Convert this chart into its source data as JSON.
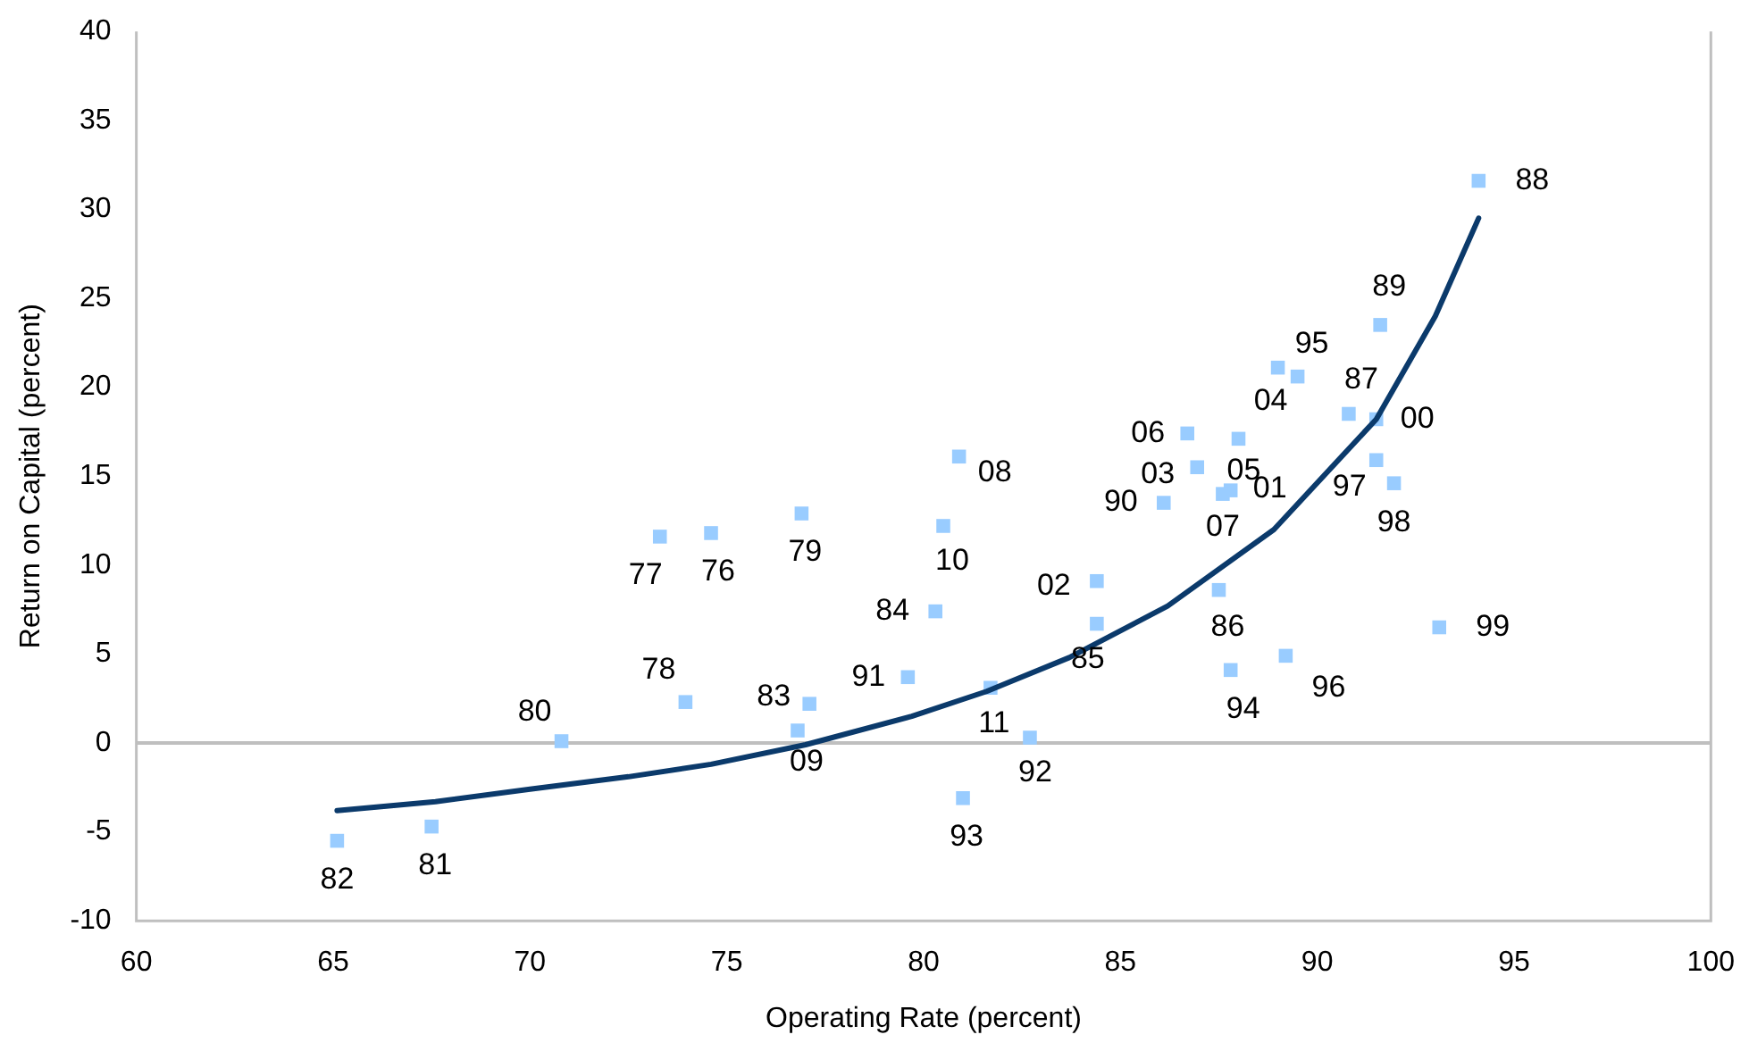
{
  "chart_data": {
    "type": "scatter",
    "xlabel": "Operating Rate (percent)",
    "ylabel": "Return on Capital (percent)",
    "xlim": [
      60,
      100
    ],
    "xticks": [
      60,
      65,
      70,
      75,
      80,
      85,
      90,
      95,
      100
    ],
    "ylim": [
      -10,
      40
    ],
    "yticks": [
      -10,
      -5,
      0,
      5,
      10,
      15,
      20,
      25,
      30,
      35,
      40
    ],
    "grid": false,
    "legend": false,
    "marker": "square",
    "ref_lines": [
      {
        "axis": "y",
        "value": 0,
        "color": "#bfbfbf"
      }
    ],
    "series": [
      {
        "color": "#99ccff",
        "x": [
          74.6,
          73.3,
          73.95,
          76.9,
          70.8,
          67.5,
          65.1,
          77.1,
          80.3,
          84.4,
          87.5,
          90.8,
          94.1,
          91.6,
          86.1,
          79.6,
          82.7,
          81.0,
          87.8,
          89.5,
          89.2,
          91.5,
          91.95,
          93.1,
          91.5,
          87.8,
          84.4,
          86.95,
          89.0,
          88.0,
          86.7,
          87.6,
          80.9,
          76.8,
          80.5,
          81.7
        ],
        "values": [
          11.8,
          11.6,
          2.3,
          12.9,
          0.1,
          -4.7,
          -5.5,
          2.2,
          7.4,
          6.7,
          8.6,
          18.5,
          31.6,
          23.5,
          13.5,
          3.7,
          0.3,
          -3.1,
          4.1,
          20.6,
          4.9,
          15.9,
          14.6,
          6.5,
          18.2,
          14.2,
          9.1,
          15.5,
          21.1,
          17.1,
          17.4,
          14.0,
          16.1,
          0.7,
          12.2,
          3.1
        ]
      },
      {
        "type": "line",
        "color": "#0b3a6b",
        "marker": "none",
        "line_style": "solid",
        "x": [
          65.1,
          67.6,
          70.0,
          72.5,
          74.6,
          77.0,
          79.7,
          81.6,
          83.7,
          86.2,
          88.9,
          91.5,
          93.0,
          94.1
        ],
        "values": [
          -3.8,
          -3.3,
          -2.6,
          -1.9,
          -1.2,
          -0.1,
          1.5,
          2.9,
          4.8,
          7.7,
          12.0,
          18.2,
          24.0,
          29.5
        ]
      }
    ],
    "annotations": [
      {
        "text": "76",
        "x": 74.6,
        "y": 11.8
      },
      {
        "text": "77",
        "x": 73.3,
        "y": 11.6
      },
      {
        "text": "78",
        "x": 73.95,
        "y": 2.3
      },
      {
        "text": "79",
        "x": 76.9,
        "y": 12.9
      },
      {
        "text": "80",
        "x": 70.8,
        "y": 0.1
      },
      {
        "text": "81",
        "x": 67.5,
        "y": -4.7
      },
      {
        "text": "82",
        "x": 65.1,
        "y": -5.5
      },
      {
        "text": "83",
        "x": 77.1,
        "y": 2.2
      },
      {
        "text": "84",
        "x": 80.3,
        "y": 7.4
      },
      {
        "text": "85",
        "x": 84.4,
        "y": 6.7
      },
      {
        "text": "86",
        "x": 87.5,
        "y": 8.6
      },
      {
        "text": "87",
        "x": 90.8,
        "y": 18.5
      },
      {
        "text": "88",
        "x": 94.1,
        "y": 31.6
      },
      {
        "text": "89",
        "x": 91.6,
        "y": 23.5
      },
      {
        "text": "90",
        "x": 86.1,
        "y": 13.5
      },
      {
        "text": "91",
        "x": 79.6,
        "y": 3.7
      },
      {
        "text": "92",
        "x": 82.7,
        "y": 0.3
      },
      {
        "text": "93",
        "x": 81.0,
        "y": -3.1
      },
      {
        "text": "94",
        "x": 87.8,
        "y": 4.1
      },
      {
        "text": "95",
        "x": 89.5,
        "y": 20.6
      },
      {
        "text": "96",
        "x": 89.2,
        "y": 4.9
      },
      {
        "text": "97",
        "x": 91.5,
        "y": 15.9
      },
      {
        "text": "98",
        "x": 91.95,
        "y": 14.6
      },
      {
        "text": "99",
        "x": 93.1,
        "y": 6.5
      },
      {
        "text": "00",
        "x": 91.5,
        "y": 18.2
      },
      {
        "text": "01",
        "x": 87.8,
        "y": 14.2
      },
      {
        "text": "02",
        "x": 84.4,
        "y": 9.1
      },
      {
        "text": "03",
        "x": 86.95,
        "y": 15.5
      },
      {
        "text": "04",
        "x": 89.0,
        "y": 21.1
      },
      {
        "text": "05",
        "x": 88.0,
        "y": 17.1
      },
      {
        "text": "06",
        "x": 86.7,
        "y": 17.4
      },
      {
        "text": "07",
        "x": 87.6,
        "y": 14.0
      },
      {
        "text": "08",
        "x": 80.9,
        "y": 16.1
      },
      {
        "text": "09",
        "x": 76.8,
        "y": 0.7
      },
      {
        "text": "10",
        "x": 80.5,
        "y": 12.2
      },
      {
        "text": "11",
        "x": 81.7,
        "y": 3.1
      }
    ]
  }
}
